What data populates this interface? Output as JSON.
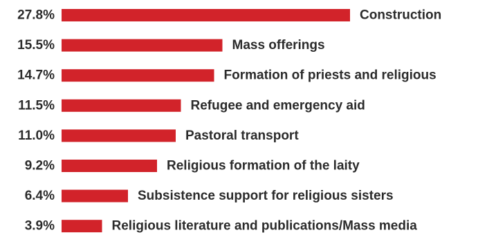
{
  "chart_data": {
    "type": "bar",
    "orientation": "horizontal",
    "categories": [
      "Construction",
      "Mass offerings",
      "Formation of priests and religious",
      "Refugee and emergency aid",
      "Pastoral transport",
      "Religious formation of the laity",
      "Subsistence support for religious sisters",
      "Religious literature and publications/Mass media"
    ],
    "values": [
      27.8,
      15.5,
      14.7,
      11.5,
      11.0,
      9.2,
      6.4,
      3.9
    ],
    "value_labels": [
      "27.8%",
      "15.5%",
      "14.7%",
      "11.5%",
      "11.0%",
      "9.2%",
      "6.4%",
      "3.9%"
    ],
    "unit": "%",
    "title": "",
    "xlabel": "",
    "ylabel": "",
    "grid": false,
    "legend": "none",
    "bar_color": "#d2232a",
    "text_color": "#2b2b2b"
  }
}
